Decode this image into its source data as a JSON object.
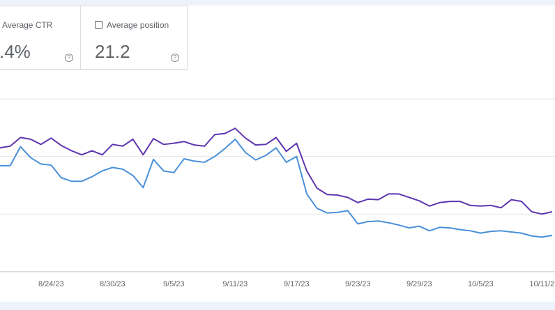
{
  "cards": [
    {
      "label": "Average CTR",
      "value": ".4%"
    },
    {
      "label": "Average position",
      "value": "21.2"
    }
  ],
  "chart_data": {
    "type": "line",
    "categories": [
      null,
      null,
      null,
      null,
      null,
      "8/24/23",
      null,
      null,
      null,
      null,
      null,
      "8/30/23",
      null,
      null,
      null,
      null,
      null,
      "9/5/23",
      null,
      null,
      null,
      null,
      null,
      "9/11/23",
      null,
      null,
      null,
      null,
      null,
      "9/17/23",
      null,
      null,
      null,
      null,
      null,
      "9/23/23",
      null,
      null,
      null,
      null,
      null,
      "9/29/23",
      null,
      null,
      null,
      null,
      null,
      "10/5/23",
      null,
      null,
      null,
      null,
      null,
      "10/11/2",
      null
    ],
    "series": [
      {
        "color": "#5e35b1",
        "values": [
          2.15,
          2.18,
          2.33,
          2.3,
          2.21,
          2.32,
          2.19,
          2.1,
          2.03,
          2.1,
          2.03,
          2.21,
          2.18,
          2.3,
          2.03,
          2.31,
          2.21,
          2.23,
          2.26,
          2.2,
          2.18,
          2.38,
          2.4,
          2.49,
          2.32,
          2.2,
          2.21,
          2.33,
          2.09,
          2.23,
          1.75,
          1.45,
          1.34,
          1.33,
          1.29,
          1.2,
          1.26,
          1.25,
          1.35,
          1.35,
          1.29,
          1.23,
          1.14,
          1.2,
          1.22,
          1.22,
          1.15,
          1.14,
          1.15,
          1.11,
          1.25,
          1.22,
          1.04,
          1.0,
          1.04
        ]
      },
      {
        "color": "#4a90d9",
        "values": [
          1.84,
          1.84,
          2.17,
          1.98,
          1.87,
          1.85,
          1.63,
          1.57,
          1.57,
          1.65,
          1.75,
          1.81,
          1.78,
          1.67,
          1.46,
          1.95,
          1.75,
          1.72,
          1.96,
          1.92,
          1.9,
          2.0,
          2.14,
          2.3,
          2.07,
          1.94,
          2.02,
          2.15,
          1.9,
          2.0,
          1.35,
          1.1,
          1.02,
          1.03,
          1.06,
          0.83,
          0.87,
          0.88,
          0.85,
          0.81,
          0.76,
          0.79,
          0.71,
          0.77,
          0.76,
          0.73,
          0.71,
          0.67,
          0.7,
          0.71,
          0.69,
          0.67,
          0.62,
          0.6,
          0.63
        ]
      }
    ],
    "ylim": [
      0,
      3
    ],
    "yticks": [
      0,
      1,
      2,
      3
    ],
    "grid": true
  }
}
